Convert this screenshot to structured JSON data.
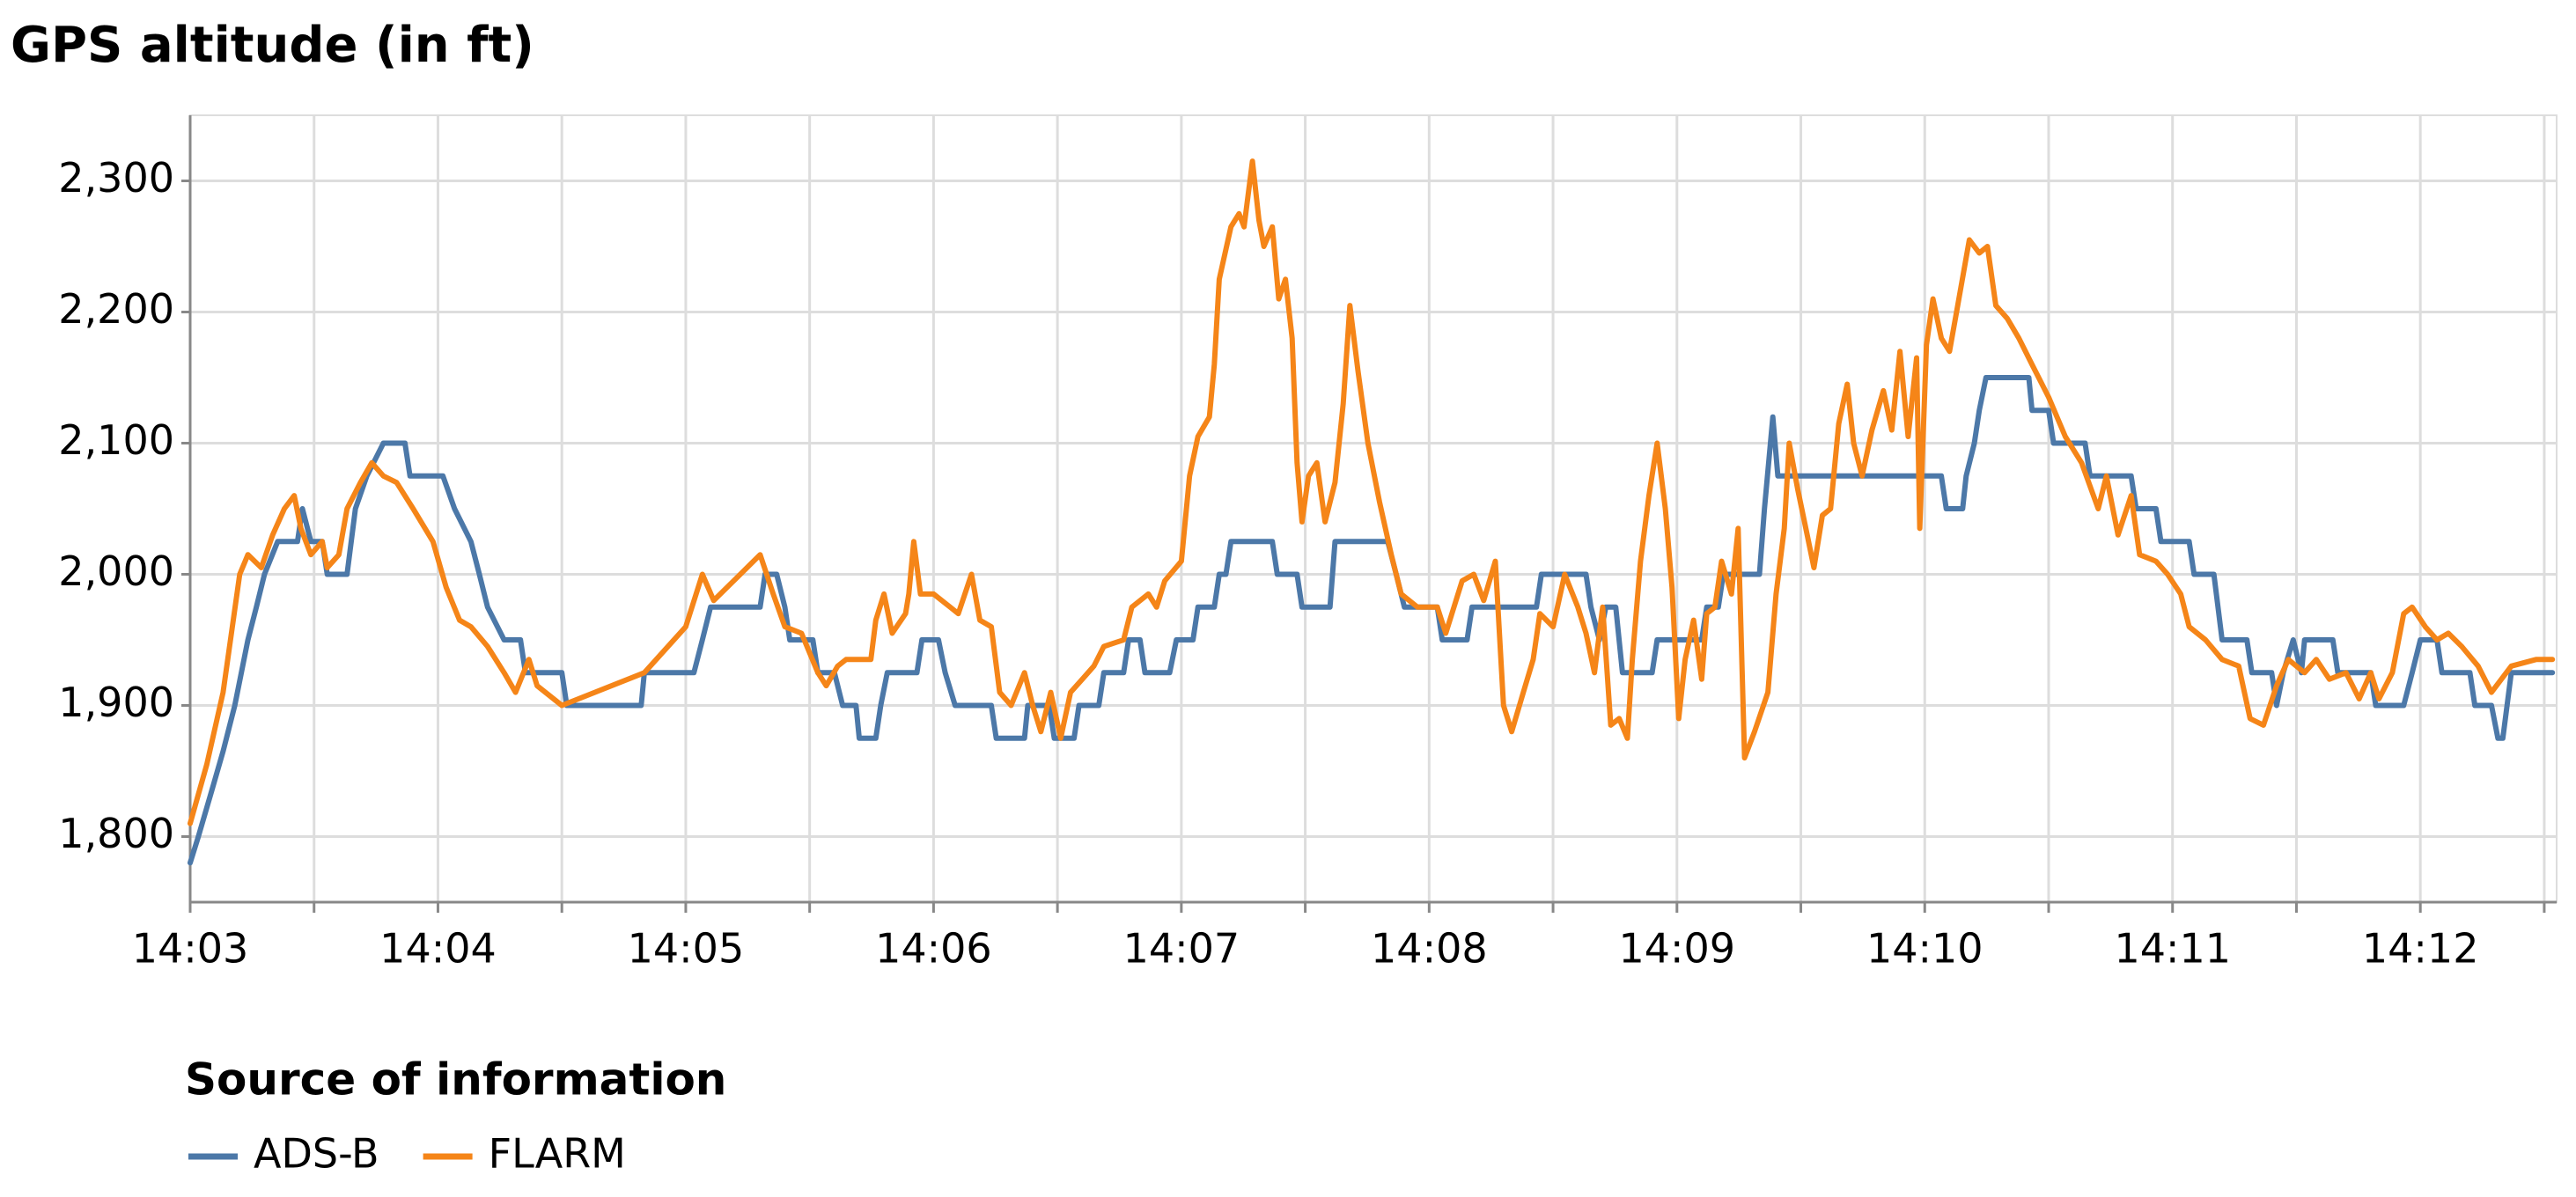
{
  "chart_data": {
    "type": "line",
    "title": "GPS altitude (in ft)",
    "legend_title": "Source of information",
    "legend_position": "bottom-left",
    "grid": true,
    "xlim": [
      843,
      852.55
    ],
    "ylim": [
      1750,
      2350
    ],
    "xticks": [
      {
        "value": 843,
        "label": "14:03"
      },
      {
        "value": 844,
        "label": "14:04"
      },
      {
        "value": 845,
        "label": "14:05"
      },
      {
        "value": 846,
        "label": "14:06"
      },
      {
        "value": 847,
        "label": "14:07"
      },
      {
        "value": 848,
        "label": "14:08"
      },
      {
        "value": 849,
        "label": "14:09"
      },
      {
        "value": 850,
        "label": "14:10"
      },
      {
        "value": 851,
        "label": "14:11"
      },
      {
        "value": 852,
        "label": "14:12"
      }
    ],
    "x_minor_ticks": [
      843.5,
      844.5,
      845.5,
      846.5,
      847.5,
      848.5,
      849.5,
      850.5,
      851.5,
      852.5
    ],
    "yticks": [
      {
        "value": 1800,
        "label": "1,800"
      },
      {
        "value": 1900,
        "label": "1,900"
      },
      {
        "value": 2000,
        "label": "2,000"
      },
      {
        "value": 2100,
        "label": "2,100"
      },
      {
        "value": 2200,
        "label": "2,200"
      },
      {
        "value": 2300,
        "label": "2,300"
      }
    ],
    "series": [
      {
        "name": "ADS-B",
        "color": "#4c78a8",
        "x": [
          843,
          843.033,
          843.087,
          843.133,
          843.18,
          843.233,
          843.267,
          843.3,
          843.353,
          843.433,
          843.453,
          843.487,
          843.533,
          843.553,
          843.633,
          843.667,
          843.713,
          843.78,
          843.867,
          843.887,
          844.02,
          844.067,
          844.133,
          844.167,
          844.2,
          844.267,
          844.333,
          844.353,
          844.5,
          844.52,
          844.82,
          844.833,
          845.033,
          845.067,
          845.1,
          845.3,
          845.32,
          845.367,
          845.4,
          845.42,
          845.513,
          845.533,
          845.6,
          845.633,
          845.687,
          845.7,
          845.767,
          845.787,
          845.813,
          845.933,
          845.953,
          846.02,
          846.047,
          846.087,
          846.233,
          846.253,
          846.367,
          846.38,
          846.467,
          846.487,
          846.567,
          846.587,
          846.667,
          846.687,
          846.767,
          846.787,
          846.833,
          846.853,
          846.953,
          846.98,
          847.047,
          847.067,
          847.133,
          847.153,
          847.18,
          847.2,
          847.367,
          847.387,
          847.467,
          847.487,
          847.6,
          847.62,
          847.833,
          847.867,
          847.9,
          848.033,
          848.053,
          848.153,
          848.173,
          848.433,
          848.453,
          848.633,
          848.653,
          848.687,
          848.713,
          848.753,
          848.78,
          848.9,
          848.92,
          849.1,
          849.12,
          849.167,
          849.187,
          849.333,
          849.353,
          849.387,
          849.407,
          850.067,
          850.087,
          850.153,
          850.167,
          850.2,
          850.22,
          850.247,
          850.42,
          850.433,
          850.5,
          850.52,
          850.647,
          850.667,
          850.833,
          850.853,
          850.933,
          850.953,
          851.067,
          851.087,
          851.167,
          851.2,
          851.3,
          851.32,
          851.4,
          851.42,
          851.447,
          851.487,
          851.52,
          851.533,
          851.647,
          851.667,
          851.8,
          851.82,
          851.933,
          851.967,
          852,
          852.067,
          852.087,
          852.2,
          852.22,
          852.287,
          852.313,
          852.333,
          852.367,
          852.533
        ],
        "values": [
          1780,
          1800,
          1835,
          1865,
          1900,
          1950,
          1975,
          2000,
          2025,
          2025,
          2050,
          2025,
          2025,
          2000,
          2000,
          2050,
          2075,
          2100,
          2100,
          2075,
          2075,
          2050,
          2025,
          2000,
          1975,
          1950,
          1950,
          1925,
          1925,
          1900,
          1900,
          1925,
          1925,
          1950,
          1975,
          1975,
          2000,
          2000,
          1975,
          1950,
          1950,
          1925,
          1925,
          1900,
          1900,
          1875,
          1875,
          1900,
          1925,
          1925,
          1950,
          1950,
          1925,
          1900,
          1900,
          1875,
          1875,
          1900,
          1900,
          1875,
          1875,
          1900,
          1900,
          1925,
          1925,
          1950,
          1950,
          1925,
          1925,
          1950,
          1950,
          1975,
          1975,
          2000,
          2000,
          2025,
          2025,
          2000,
          2000,
          1975,
          1975,
          2025,
          2025,
          2000,
          1975,
          1975,
          1950,
          1950,
          1975,
          1975,
          2000,
          2000,
          1975,
          1950,
          1975,
          1975,
          1925,
          1925,
          1950,
          1950,
          1975,
          1975,
          2000,
          2000,
          2050,
          2120,
          2075,
          2075,
          2050,
          2050,
          2075,
          2100,
          2125,
          2150,
          2150,
          2125,
          2125,
          2100,
          2100,
          2075,
          2075,
          2050,
          2050,
          2025,
          2025,
          2000,
          2000,
          1950,
          1950,
          1925,
          1925,
          1900,
          1925,
          1950,
          1925,
          1950,
          1950,
          1925,
          1925,
          1900,
          1900,
          1925,
          1950,
          1950,
          1925,
          1925,
          1900,
          1900,
          1875,
          1875,
          1925,
          1925
        ]
      },
      {
        "name": "FLARM",
        "color": "#f58518",
        "x": [
          843,
          843.067,
          843.133,
          843.2,
          843.233,
          843.287,
          843.333,
          843.38,
          843.42,
          843.447,
          843.487,
          843.533,
          843.553,
          843.6,
          843.633,
          843.687,
          843.733,
          843.78,
          843.833,
          843.9,
          843.98,
          844.033,
          844.087,
          844.133,
          844.2,
          844.267,
          844.313,
          844.367,
          844.4,
          844.5,
          844.833,
          845,
          845.067,
          845.113,
          845.22,
          845.3,
          845.353,
          845.4,
          845.467,
          845.533,
          845.567,
          845.613,
          845.647,
          845.7,
          845.747,
          845.767,
          845.8,
          845.833,
          845.887,
          845.9,
          845.92,
          845.947,
          846,
          846.067,
          846.1,
          846.153,
          846.187,
          846.233,
          846.267,
          846.313,
          846.367,
          846.4,
          846.433,
          846.473,
          846.513,
          846.553,
          846.6,
          846.647,
          846.687,
          846.767,
          846.8,
          846.867,
          846.9,
          846.933,
          847,
          847.033,
          847.067,
          847.113,
          847.133,
          847.153,
          847.2,
          847.233,
          847.253,
          847.287,
          847.313,
          847.333,
          847.367,
          847.393,
          847.42,
          847.447,
          847.467,
          847.487,
          847.513,
          847.547,
          847.58,
          847.62,
          847.653,
          847.68,
          847.713,
          847.753,
          847.8,
          847.847,
          847.887,
          847.953,
          848.033,
          848.067,
          848.133,
          848.18,
          848.22,
          848.267,
          848.3,
          848.333,
          848.38,
          848.42,
          848.447,
          848.5,
          848.547,
          848.6,
          848.633,
          848.667,
          848.7,
          848.733,
          848.767,
          848.8,
          848.82,
          848.853,
          848.887,
          848.92,
          848.953,
          848.98,
          849.007,
          849.033,
          849.067,
          849.1,
          849.12,
          849.153,
          849.18,
          849.22,
          849.247,
          849.273,
          849.313,
          849.367,
          849.4,
          849.433,
          849.453,
          849.487,
          849.52,
          849.553,
          849.587,
          849.62,
          849.653,
          849.687,
          849.713,
          849.747,
          849.787,
          849.833,
          849.867,
          849.9,
          849.933,
          849.967,
          849.98,
          850.007,
          850.033,
          850.067,
          850.1,
          850.133,
          850.18,
          850.22,
          850.253,
          850.287,
          850.333,
          850.38,
          850.433,
          850.5,
          850.567,
          850.633,
          850.7,
          850.733,
          850.78,
          850.833,
          850.867,
          850.933,
          850.98,
          851.033,
          851.067,
          851.133,
          851.2,
          851.267,
          851.313,
          851.367,
          851.42,
          851.467,
          851.533,
          851.58,
          851.633,
          851.7,
          851.753,
          851.8,
          851.833,
          851.887,
          851.933,
          851.967,
          852.02,
          852.067,
          852.113,
          852.167,
          852.233,
          852.287,
          852.367,
          852.467,
          852.533
        ],
        "values": [
          1810,
          1855,
          1910,
          2000,
          2015,
          2005,
          2030,
          2050,
          2060,
          2035,
          2015,
          2025,
          2005,
          2015,
          2050,
          2070,
          2085,
          2075,
          2070,
          2050,
          2025,
          1990,
          1965,
          1960,
          1945,
          1925,
          1910,
          1935,
          1915,
          1900,
          1925,
          1960,
          2000,
          1980,
          2000,
          2015,
          1985,
          1960,
          1955,
          1925,
          1915,
          1930,
          1935,
          1935,
          1935,
          1965,
          1985,
          1955,
          1970,
          1985,
          2025,
          1985,
          1985,
          1975,
          1970,
          2000,
          1965,
          1960,
          1910,
          1900,
          1925,
          1900,
          1880,
          1910,
          1875,
          1910,
          1920,
          1930,
          1945,
          1950,
          1975,
          1985,
          1975,
          1995,
          2010,
          2075,
          2105,
          2120,
          2160,
          2225,
          2265,
          2275,
          2265,
          2315,
          2270,
          2250,
          2265,
          2210,
          2225,
          2180,
          2085,
          2040,
          2075,
          2085,
          2040,
          2070,
          2130,
          2205,
          2155,
          2100,
          2055,
          2015,
          1985,
          1975,
          1975,
          1955,
          1995,
          2000,
          1980,
          2010,
          1900,
          1880,
          1910,
          1935,
          1970,
          1960,
          2000,
          1975,
          1955,
          1925,
          1975,
          1885,
          1890,
          1875,
          1935,
          2010,
          2060,
          2100,
          2050,
          1990,
          1890,
          1935,
          1965,
          1920,
          1970,
          1975,
          2010,
          1985,
          2035,
          1860,
          1880,
          1910,
          1985,
          2035,
          2100,
          2065,
          2035,
          2005,
          2045,
          2050,
          2115,
          2145,
          2100,
          2075,
          2110,
          2140,
          2110,
          2170,
          2105,
          2165,
          2035,
          2175,
          2210,
          2180,
          2170,
          2205,
          2255,
          2245,
          2250,
          2205,
          2195,
          2180,
          2160,
          2135,
          2105,
          2085,
          2050,
          2075,
          2030,
          2060,
          2015,
          2010,
          2000,
          1985,
          1960,
          1950,
          1935,
          1930,
          1890,
          1885,
          1915,
          1935,
          1925,
          1935,
          1920,
          1925,
          1905,
          1925,
          1905,
          1925,
          1970,
          1975,
          1960,
          1950,
          1955,
          1945,
          1930,
          1910,
          1930,
          1935,
          1935
        ]
      }
    ]
  }
}
